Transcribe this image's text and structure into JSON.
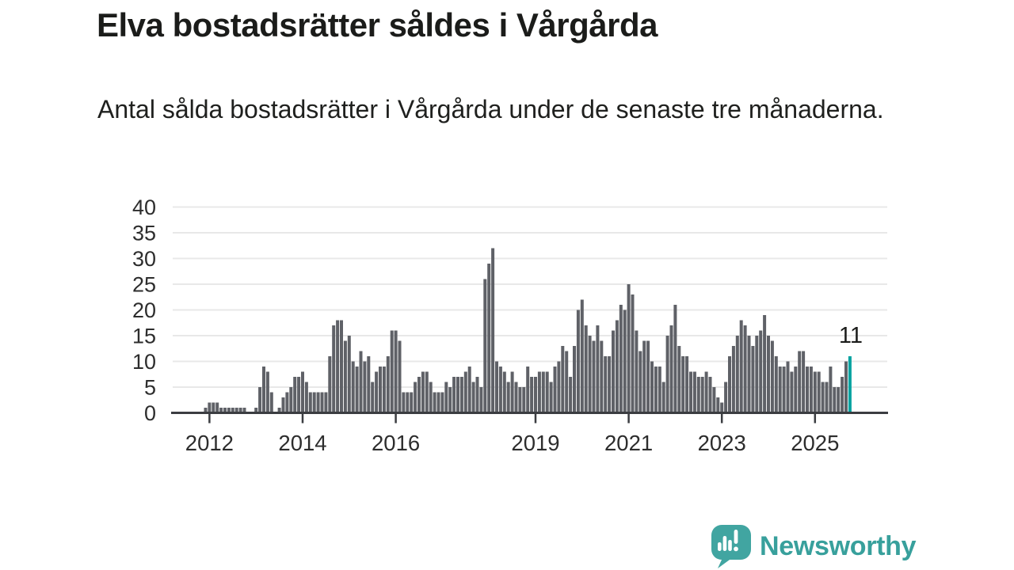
{
  "header": {
    "title": "Elva bostadsrätter såldes i Vårgårda",
    "subtitle": "Antal sålda bostadsrätter i Vårgårda under de senaste tre månaderna."
  },
  "chart_data": {
    "type": "bar",
    "title": "Elva bostadsrätter såldes i Vårgårda",
    "subtitle": "Antal sålda bostadsrätter i Vårgårda under de senaste tre månaderna.",
    "frequency": "monthly",
    "start_month": "2011-12",
    "end_month": "2025-10",
    "values": [
      1,
      2,
      2,
      2,
      1,
      1,
      1,
      1,
      1,
      1,
      1,
      0,
      0,
      1,
      5,
      9,
      8,
      4,
      0,
      1,
      3,
      4,
      5,
      7,
      7,
      8,
      6,
      4,
      4,
      4,
      4,
      4,
      11,
      17,
      18,
      18,
      14,
      15,
      10,
      9,
      12,
      10,
      11,
      6,
      8,
      9,
      9,
      11,
      16,
      16,
      14,
      4,
      4,
      4,
      6,
      7,
      8,
      8,
      6,
      4,
      4,
      4,
      6,
      5,
      7,
      7,
      7,
      8,
      9,
      6,
      7,
      5,
      26,
      29,
      32,
      10,
      9,
      8,
      6,
      8,
      6,
      5,
      5,
      9,
      7,
      7,
      8,
      8,
      8,
      6,
      9,
      10,
      13,
      12,
      7,
      13,
      20,
      22,
      17,
      15,
      14,
      17,
      14,
      11,
      11,
      16,
      18,
      21,
      20,
      25,
      23,
      16,
      12,
      14,
      14,
      10,
      9,
      9,
      6,
      15,
      17,
      21,
      13,
      11,
      11,
      8,
      8,
      7,
      7,
      8,
      7,
      5,
      3,
      2,
      6,
      11,
      13,
      15,
      18,
      17,
      15,
      13,
      15,
      16,
      19,
      15,
      14,
      11,
      9,
      9,
      10,
      8,
      9,
      12,
      12,
      9,
      9,
      8,
      8,
      6,
      6,
      9,
      5,
      5,
      7,
      10,
      11
    ],
    "highlight_index": 166,
    "highlight_value": 11,
    "annotation_label": "11",
    "yticks": [
      0,
      5,
      10,
      15,
      20,
      25,
      30,
      35,
      40
    ],
    "ylim": [
      0,
      40
    ],
    "xticks": [
      2012,
      2014,
      2016,
      2019,
      2021,
      2023,
      2025
    ],
    "grid": true,
    "legend": "none",
    "bar_color": "#5f6167",
    "highlight_color": "#00a2a0",
    "grid_color": "#e8e8e8",
    "axis_color": "#3b3d41",
    "axis_text_color": "#2d2d2d"
  },
  "footer": {
    "brand": "Newsworthy",
    "brand_color": "#38a09c",
    "bubble_color": "#41a5a1"
  }
}
